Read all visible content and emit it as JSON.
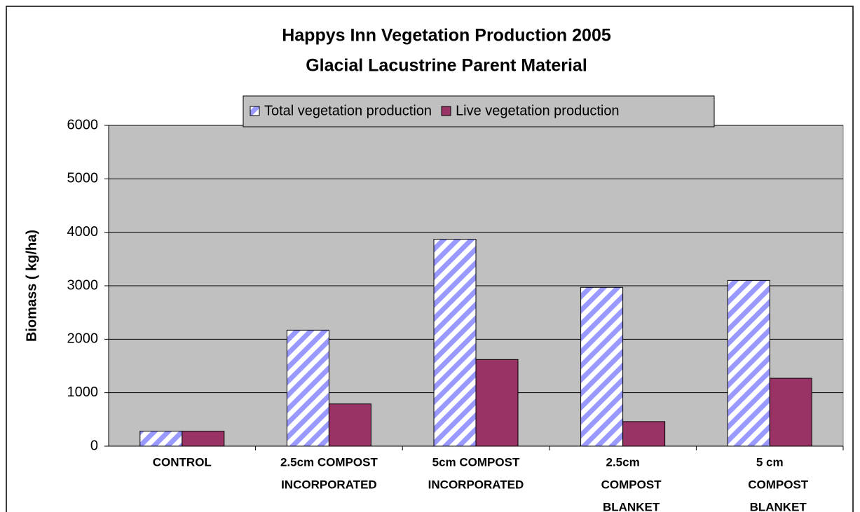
{
  "chart_data": {
    "type": "bar",
    "title": "Happys Inn Vegetation Production 2005",
    "subtitle": "Glacial Lacustrine Parent Material",
    "y_label": "Biomass ( kg/ha)",
    "categories": [
      [
        "CONTROL"
      ],
      [
        "2.5cm COMPOST",
        "INCORPORATED"
      ],
      [
        "5cm COMPOST",
        "INCORPORATED"
      ],
      [
        "2.5cm",
        "COMPOST",
        "BLANKET"
      ],
      [
        "5 cm",
        "COMPOST",
        "BLANKET"
      ]
    ],
    "series": [
      {
        "name": "Total vegetation production",
        "color": "#9999ff",
        "pattern": "hatch",
        "values": [
          280,
          2170,
          3870,
          2970,
          3100
        ]
      },
      {
        "name": "Live vegetation production",
        "color": "#993366",
        "values": [
          280,
          790,
          1620,
          460,
          1270
        ]
      }
    ],
    "ylim": [
      0,
      6000
    ],
    "yticks": [
      0,
      1000,
      2000,
      3000,
      4000,
      5000,
      6000
    ],
    "grid": true,
    "legend": "top"
  }
}
